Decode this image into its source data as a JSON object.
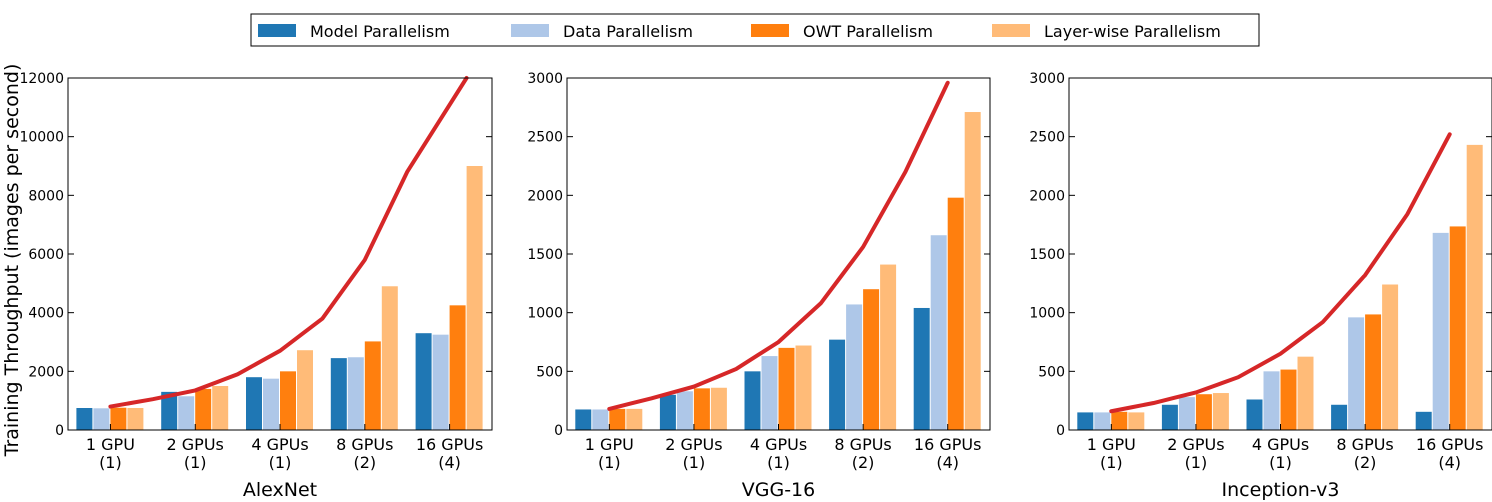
{
  "ylabel": "Training Throughput (images per second)",
  "legend": [
    {
      "name": "Model Parallelism",
      "color": "#1f77b4"
    },
    {
      "name": "Data Parallelism",
      "color": "#aec7e8"
    },
    {
      "name": "OWT Parallelism",
      "color": "#ff7f0e"
    },
    {
      "name": "Layer-wise Parallelism",
      "color": "#ffbb78"
    }
  ],
  "chart_data": [
    {
      "type": "bar",
      "title": "AlexNet",
      "categories": [
        "1 GPU\n(1)",
        "2 GPUs\n(1)",
        "4 GPUs\n(1)",
        "8 GPUs\n(2)",
        "16 GPUs\n(4)"
      ],
      "ylim": [
        0,
        12000
      ],
      "yticks": [
        0,
        2000,
        4000,
        6000,
        8000,
        10000,
        12000
      ],
      "series": [
        {
          "name": "Model Parallelism",
          "values": [
            750,
            1300,
            1800,
            2450,
            3300
          ]
        },
        {
          "name": "Data Parallelism",
          "values": [
            740,
            1150,
            1750,
            2480,
            3250
          ]
        },
        {
          "name": "OWT Parallelism",
          "values": [
            760,
            1400,
            2000,
            3020,
            4250
          ]
        },
        {
          "name": "Layer-wise Parallelism",
          "values": [
            750,
            1500,
            2720,
            4900,
            9000
          ]
        }
      ],
      "curve": {
        "color": "#d62728",
        "x": [
          0,
          0.5,
          1,
          1.5,
          2,
          2.5,
          3,
          3.5,
          4.2
        ],
        "y": [
          800,
          1050,
          1350,
          1900,
          2700,
          3800,
          5800,
          8800,
          12000
        ]
      }
    },
    {
      "type": "bar",
      "title": "VGG-16",
      "categories": [
        "1 GPU\n(1)",
        "2 GPUs\n(1)",
        "4 GPUs\n(1)",
        "8 GPUs\n(2)",
        "16 GPUs\n(4)"
      ],
      "ylim": [
        0,
        3000
      ],
      "yticks": [
        0,
        500,
        1000,
        1500,
        2000,
        2500,
        3000
      ],
      "series": [
        {
          "name": "Model Parallelism",
          "values": [
            175,
            300,
            500,
            770,
            1040
          ]
        },
        {
          "name": "Data Parallelism",
          "values": [
            175,
            330,
            630,
            1070,
            1660
          ]
        },
        {
          "name": "OWT Parallelism",
          "values": [
            180,
            355,
            700,
            1200,
            1980
          ]
        },
        {
          "name": "Layer-wise Parallelism",
          "values": [
            180,
            360,
            720,
            1410,
            2710
          ]
        }
      ],
      "curve": {
        "color": "#d62728",
        "x": [
          0,
          0.5,
          1,
          1.5,
          2,
          2.5,
          3,
          3.5,
          4
        ],
        "y": [
          180,
          270,
          370,
          520,
          750,
          1080,
          1560,
          2200,
          2960
        ]
      }
    },
    {
      "type": "bar",
      "title": "Inception-v3",
      "categories": [
        "1 GPU\n(1)",
        "2 GPUs\n(1)",
        "4 GPUs\n(1)",
        "8 GPUs\n(2)",
        "16 GPUs\n(4)"
      ],
      "ylim": [
        0,
        3000
      ],
      "yticks": [
        0,
        500,
        1000,
        1500,
        2000,
        2500,
        3000
      ],
      "series": [
        {
          "name": "Model Parallelism",
          "values": [
            150,
            215,
            260,
            215,
            155
          ]
        },
        {
          "name": "Data Parallelism",
          "values": [
            150,
            280,
            500,
            960,
            1680
          ]
        },
        {
          "name": "OWT Parallelism",
          "values": [
            155,
            305,
            515,
            985,
            1735
          ]
        },
        {
          "name": "Layer-wise Parallelism",
          "values": [
            150,
            315,
            625,
            1240,
            2430
          ]
        }
      ],
      "curve": {
        "color": "#d62728",
        "x": [
          0,
          0.5,
          1,
          1.5,
          2,
          2.5,
          3,
          3.5,
          4
        ],
        "y": [
          160,
          230,
          320,
          450,
          650,
          920,
          1320,
          1840,
          2520
        ]
      }
    }
  ]
}
